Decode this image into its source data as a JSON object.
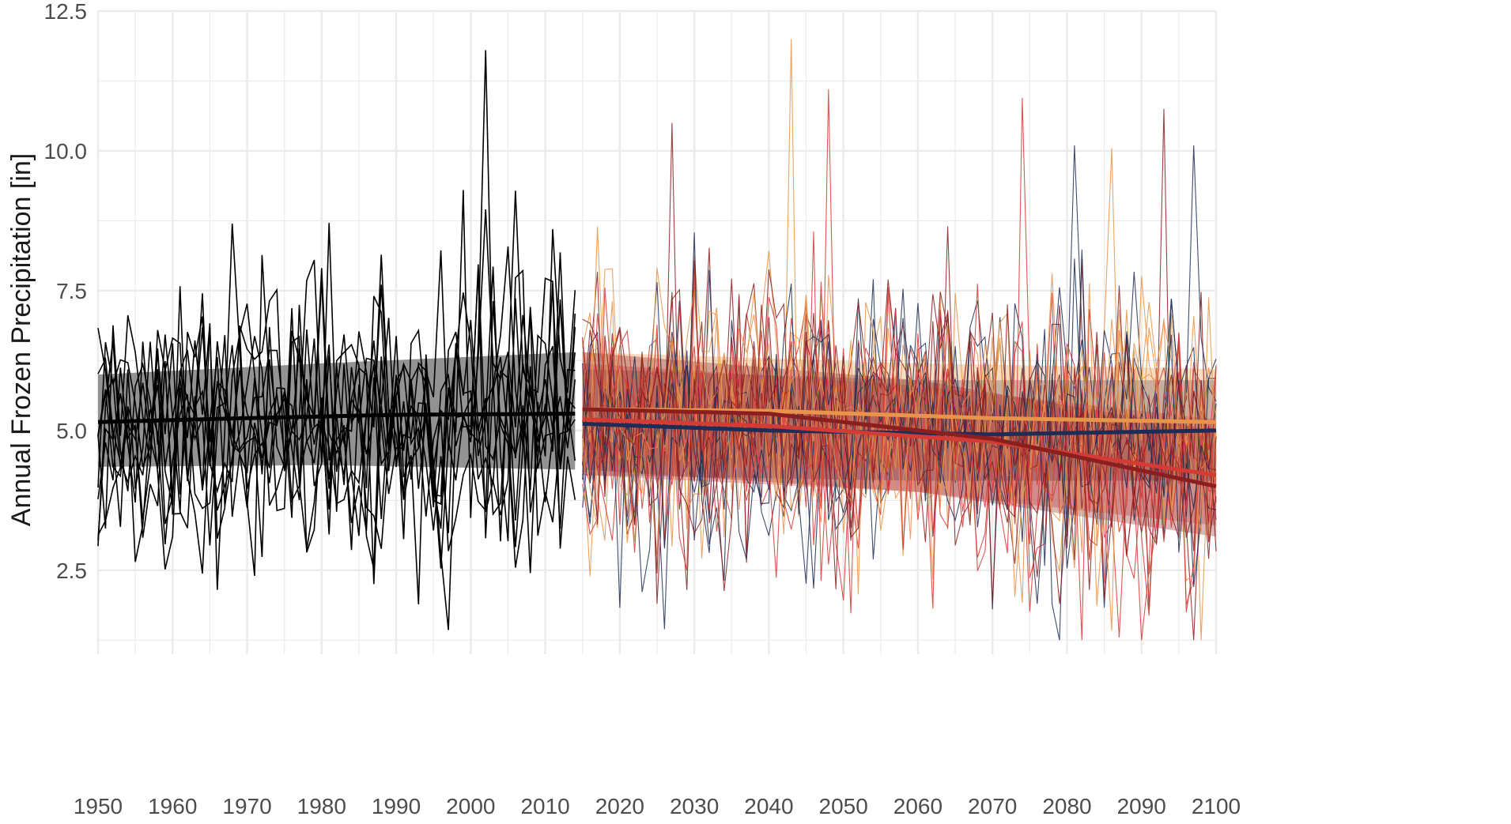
{
  "chart_data": {
    "type": "line",
    "title": "",
    "xlabel": "",
    "ylabel": "Annual Frozen Precipitation [in]",
    "xlim": [
      1950,
      2100
    ],
    "ylim": [
      1.0,
      12.5
    ],
    "x_ticks": [
      1950,
      1960,
      1970,
      1980,
      1990,
      2000,
      2010,
      2020,
      2030,
      2040,
      2050,
      2060,
      2070,
      2080,
      2090,
      2100
    ],
    "x_tick_labels": [
      "1950",
      "1960",
      "1970",
      "1980",
      "1990",
      "2000",
      "2010",
      "2020",
      "2030",
      "2040",
      "2050",
      "2060",
      "2070",
      "2080",
      "2090",
      "2100"
    ],
    "y_ticks": [
      2.5,
      5.0,
      7.5,
      10.0,
      12.5
    ],
    "y_tick_labels": [
      "2.5",
      "5.0",
      "7.5",
      "10.0",
      "12.5"
    ],
    "grid": true,
    "legend": "none",
    "colors": {
      "historical": "#000000",
      "historical_band": "#808080",
      "navy": "#1f2c55",
      "orange": "#e8944a",
      "red": "#d43b35",
      "darkred": "#8b1f1f",
      "grid": "#ebebeb"
    },
    "historical": {
      "x_start": 1950,
      "x_end": 2014,
      "ensemble_members": 10,
      "mean_trend": {
        "x": [
          1950,
          1970,
          1990,
          2014
        ],
        "y": [
          5.15,
          5.22,
          5.28,
          5.3
        ]
      },
      "band": {
        "x": [
          1950,
          1980,
          2014
        ],
        "lower": [
          4.35,
          4.38,
          4.3
        ],
        "upper": [
          6.0,
          6.2,
          6.4
        ]
      },
      "annual_mean": 5.2,
      "annual_sd": 1.25,
      "extremes": [
        {
          "x": 1955,
          "y": 2.65
        },
        {
          "x": 1966,
          "y": 2.15
        },
        {
          "x": 1968,
          "y": 8.7
        },
        {
          "x": 1971,
          "y": 2.4
        },
        {
          "x": 1999,
          "y": 9.3
        },
        {
          "x": 2002,
          "y": 11.8
        },
        {
          "x": 2008,
          "y": 2.45
        },
        {
          "x": 2011,
          "y": 8.6
        }
      ]
    },
    "projections": [
      {
        "color_key": "navy",
        "trend": {
          "x": [
            2015,
            2040,
            2070,
            2100
          ],
          "y": [
            5.12,
            5.0,
            4.93,
            5.0
          ]
        },
        "band": {
          "x": [
            2015,
            2060,
            2100
          ],
          "lower": [
            4.2,
            4.1,
            4.1
          ],
          "upper": [
            6.1,
            5.9,
            5.9
          ]
        },
        "peaks": [
          {
            "x": 2081,
            "y": 10.1
          },
          {
            "x": 2097,
            "y": 10.1
          },
          {
            "x": 2070,
            "y": 1.8
          }
        ]
      },
      {
        "color_key": "orange",
        "trend": {
          "x": [
            2015,
            2040,
            2070,
            2100
          ],
          "y": [
            5.38,
            5.35,
            5.22,
            5.15
          ]
        },
        "band": {
          "x": [
            2015,
            2060,
            2100
          ],
          "lower": [
            4.4,
            4.3,
            4.2
          ],
          "upper": [
            6.4,
            6.2,
            6.1
          ]
        },
        "peaks": [
          {
            "x": 2043,
            "y": 12.0
          },
          {
            "x": 2086,
            "y": 10.05
          }
        ]
      },
      {
        "color_key": "red",
        "trend": {
          "x": [
            2015,
            2040,
            2070,
            2100
          ],
          "y": [
            5.2,
            5.08,
            4.8,
            4.2
          ]
        },
        "band": {
          "x": [
            2015,
            2060,
            2100
          ],
          "lower": [
            4.2,
            3.9,
            3.3
          ],
          "upper": [
            6.2,
            5.8,
            5.2
          ]
        },
        "peaks": [
          {
            "x": 2048,
            "y": 11.1
          },
          {
            "x": 2074,
            "y": 10.95
          },
          {
            "x": 2087,
            "y": 1.3
          }
        ]
      },
      {
        "color_key": "darkred",
        "trend": {
          "x": [
            2015,
            2040,
            2070,
            2100
          ],
          "y": [
            5.38,
            5.3,
            4.85,
            4.0
          ]
        },
        "band": {
          "x": [
            2015,
            2060,
            2100
          ],
          "lower": [
            4.3,
            3.9,
            3.1
          ],
          "upper": [
            6.4,
            5.9,
            5.0
          ]
        },
        "peaks": [
          {
            "x": 2027,
            "y": 10.5
          },
          {
            "x": 2093,
            "y": 10.75
          },
          {
            "x": 2025,
            "y": 1.9
          }
        ]
      }
    ]
  }
}
